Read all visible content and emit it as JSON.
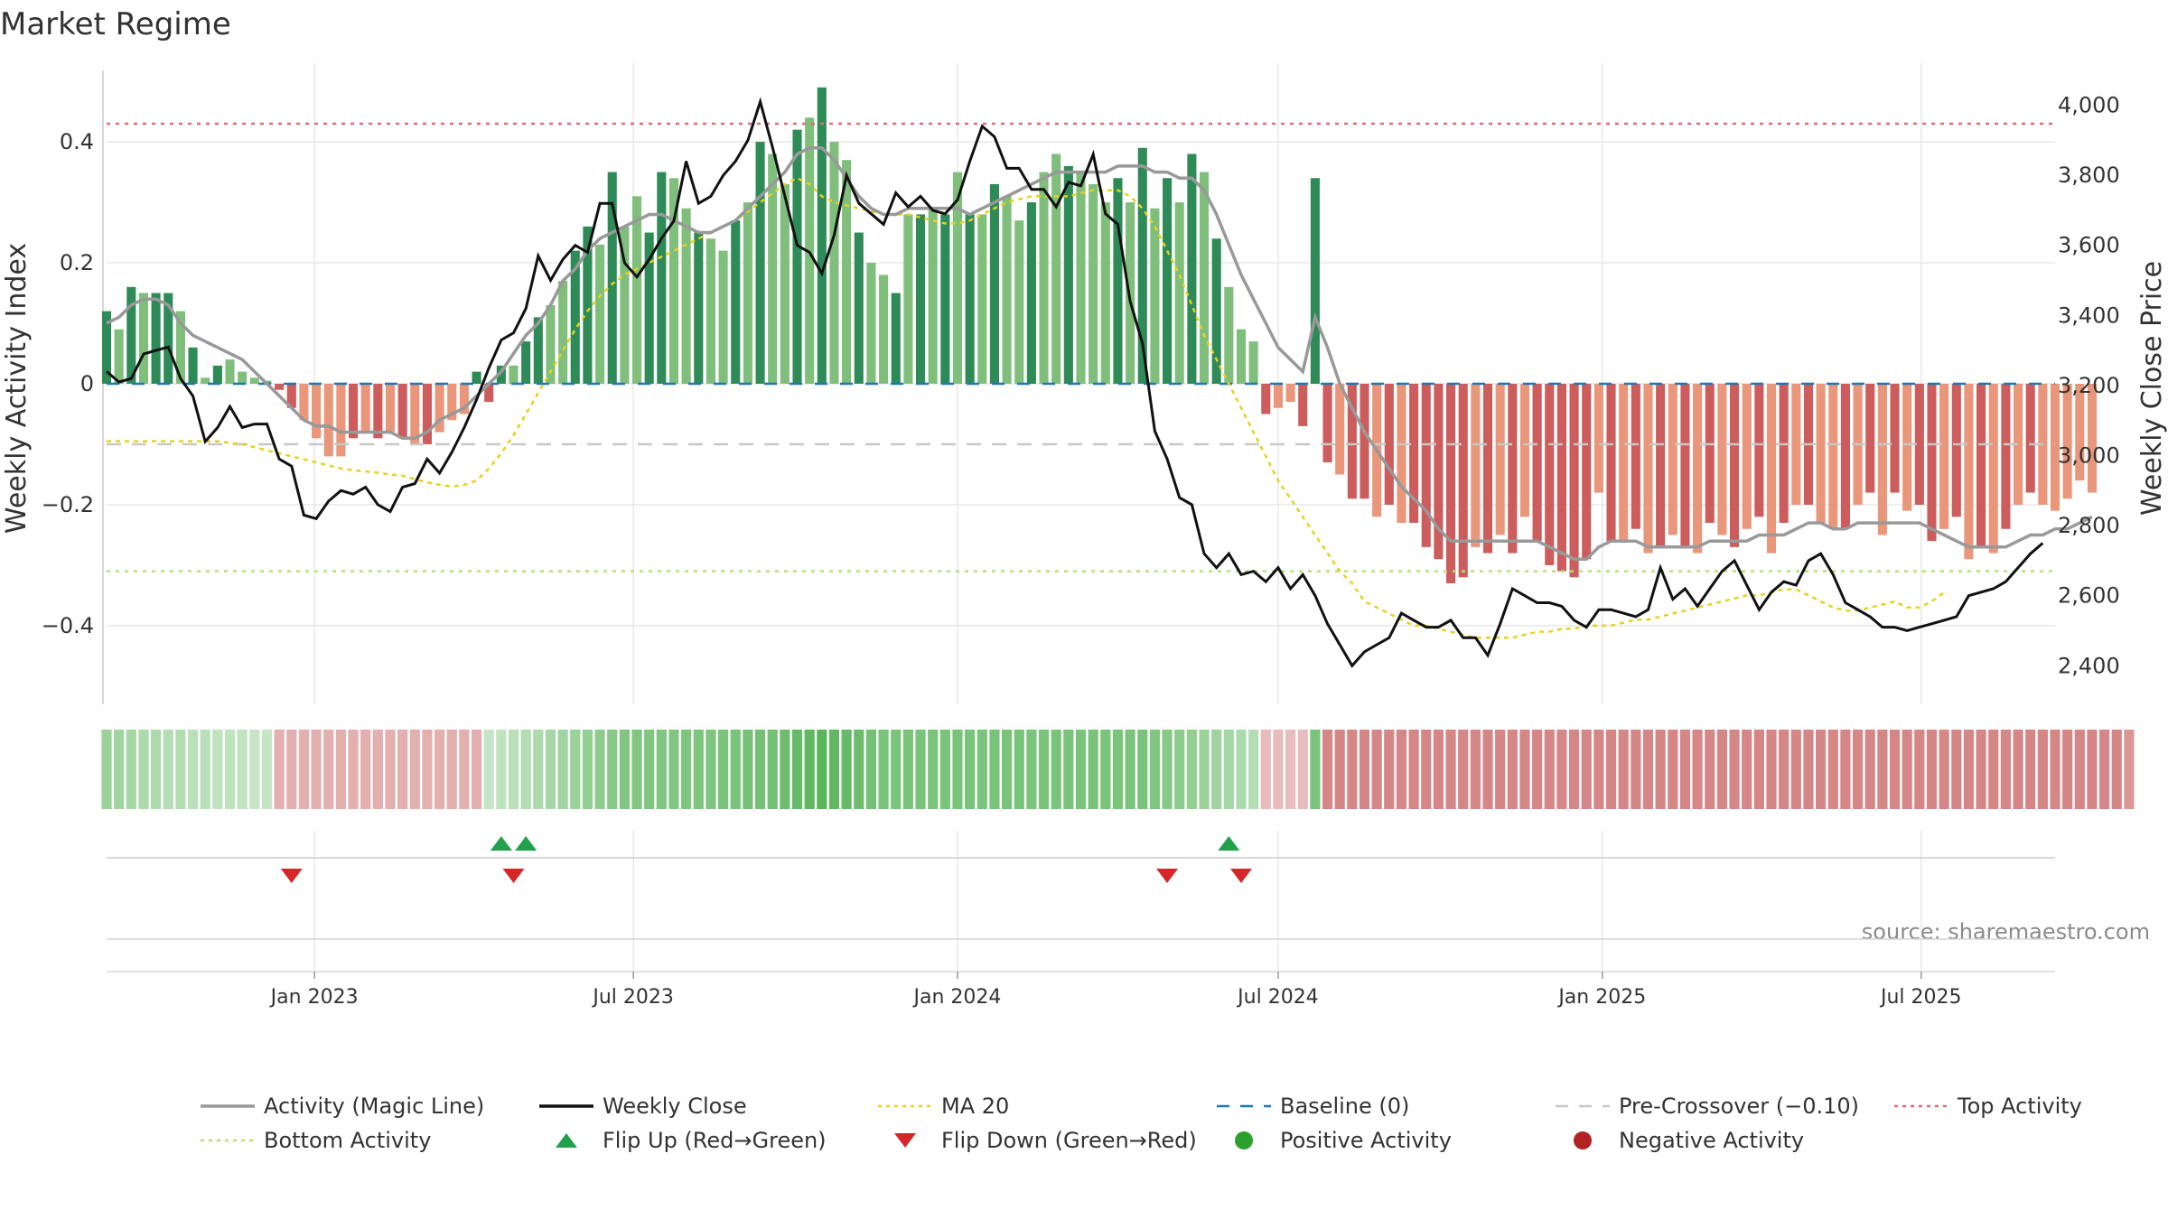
{
  "title": "Market Regime",
  "source": "source: sharemaestro.com",
  "colors": {
    "bar_green_dark": "#2e8b57",
    "bar_green_light": "#7fbf7b",
    "bar_red_dark": "#cd5c5c",
    "bar_red_light": "#e9967a",
    "magic_line": "#999999",
    "weekly_close": "#111111",
    "ma20": "#e6d21e",
    "baseline": "#1f77b4",
    "pre_crossover": "#c8c8c8",
    "top_activity": "#e06c75",
    "bottom_activity": "#b5e07a",
    "flip_up": "#22a04b",
    "flip_down": "#d62728",
    "positive": "#2ca02c",
    "negative": "#b22222"
  },
  "chart_data": {
    "type": "bar",
    "left_axis": {
      "label": "Weekly Activity Index",
      "ylim": [
        -0.53,
        0.53
      ],
      "ticks": [
        0.4,
        0.2,
        0,
        -0.2,
        -0.4
      ],
      "tick_labels": [
        "0.4",
        "0.2",
        "0",
        "−0.2",
        "−0.4"
      ]
    },
    "right_axis": {
      "label": "Weekly Close Price",
      "ylim": [
        2290,
        4120
      ],
      "ticks": [
        4000,
        3800,
        3600,
        3400,
        3200,
        3000,
        2800,
        2600,
        2400
      ],
      "tick_labels": [
        "4,000",
        "3,800",
        "3,600",
        "3,400",
        "3,200",
        "3,000",
        "2,800",
        "2,600",
        "2,400"
      ]
    },
    "x_axis": {
      "start": "2022-09-05",
      "end": "2025-09-15",
      "ticks": [
        "2023-01-01",
        "2023-07-01",
        "2024-01-01",
        "2024-07-01",
        "2025-01-01",
        "2025-07-01"
      ],
      "tick_labels": [
        "Jan 2023",
        "Jul 2023",
        "Jan 2024",
        "Jul 2024",
        "Jan 2025",
        "Jul 2025"
      ]
    },
    "weeks": {
      "start": "2022-09-05",
      "activity": [
        0.12,
        0.09,
        0.16,
        0.15,
        0.15,
        0.15,
        0.12,
        0.06,
        0.01,
        0.03,
        0.04,
        0.02,
        0.01,
        0.005,
        -0.01,
        -0.04,
        -0.06,
        -0.09,
        -0.12,
        -0.12,
        -0.09,
        -0.08,
        -0.09,
        -0.08,
        -0.09,
        -0.1,
        -0.1,
        -0.08,
        -0.06,
        -0.05,
        0.02,
        -0.03,
        0.03,
        0.03,
        0.07,
        0.11,
        0.13,
        0.17,
        0.22,
        0.26,
        0.23,
        0.35,
        0.26,
        0.31,
        0.25,
        0.35,
        0.34,
        0.29,
        0.25,
        0.24,
        0.22,
        0.27,
        0.3,
        0.4,
        0.38,
        0.33,
        0.42,
        0.44,
        0.49,
        0.4,
        0.37,
        0.25,
        0.2,
        0.18,
        0.15,
        0.28,
        0.28,
        0.29,
        0.28,
        0.35,
        0.28,
        0.28,
        0.33,
        0.31,
        0.27,
        0.3,
        0.35,
        0.38,
        0.36,
        0.35,
        0.33,
        0.3,
        0.34,
        0.3,
        0.39,
        0.29,
        0.34,
        0.3,
        0.38,
        0.35,
        0.24,
        0.16,
        0.09,
        0.07,
        -0.05,
        -0.04,
        -0.03,
        -0.07,
        0.34,
        -0.13,
        -0.15,
        -0.19,
        -0.19,
        -0.22,
        -0.2,
        -0.23,
        -0.23,
        -0.27,
        -0.29,
        -0.33,
        -0.32,
        -0.27,
        -0.28,
        -0.25,
        -0.28,
        -0.22,
        -0.26,
        -0.3,
        -0.31,
        -0.32,
        -0.29,
        -0.18,
        -0.26,
        -0.26,
        -0.24,
        -0.28,
        -0.27,
        -0.25,
        -0.27,
        -0.28,
        -0.23,
        -0.25,
        -0.27,
        -0.24,
        -0.22,
        -0.28,
        -0.23,
        -0.2,
        -0.2,
        -0.23,
        -0.24,
        -0.24,
        -0.2,
        -0.18,
        -0.25,
        -0.18,
        -0.21,
        -0.2,
        -0.26,
        -0.24,
        -0.22,
        -0.29,
        -0.27,
        -0.28,
        -0.24,
        -0.2,
        -0.18,
        -0.2,
        -0.21,
        -0.19,
        -0.16,
        -0.18
      ],
      "activity_dark": [
        1,
        0,
        1,
        0,
        1,
        1,
        0,
        1,
        0,
        1,
        0,
        0,
        0,
        0,
        1,
        1,
        0,
        0,
        0,
        0,
        1,
        0,
        1,
        0,
        1,
        0,
        1,
        0,
        0,
        0,
        1,
        1,
        1,
        0,
        1,
        1,
        0,
        0,
        1,
        1,
        0,
        1,
        0,
        0,
        1,
        1,
        0,
        0,
        1,
        0,
        0,
        1,
        0,
        1,
        0,
        0,
        1,
        0,
        1,
        0,
        0,
        1,
        0,
        0,
        1,
        0,
        1,
        0,
        1,
        0,
        1,
        0,
        1,
        0,
        0,
        1,
        0,
        0,
        1,
        0,
        0,
        0,
        1,
        0,
        1,
        0,
        1,
        0,
        1,
        0,
        1,
        0,
        0,
        0,
        1,
        0,
        0,
        1,
        1,
        1,
        0,
        1,
        1,
        0,
        1,
        0,
        1,
        1,
        1,
        1,
        1,
        0,
        1,
        0,
        1,
        0,
        1,
        1,
        1,
        1,
        1,
        0,
        1,
        0,
        1,
        0,
        1,
        0,
        1,
        0,
        1,
        0,
        1,
        0,
        1,
        0,
        1,
        0,
        1,
        0,
        0,
        1,
        0,
        1,
        0,
        1,
        0,
        1,
        1,
        0,
        1,
        0,
        1,
        0,
        1,
        0,
        1,
        0,
        0,
        0,
        0,
        0,
        1,
        0,
        1,
        1,
        0
      ],
      "magic": [
        0.1,
        0.11,
        0.13,
        0.14,
        0.14,
        0.13,
        0.1,
        0.08,
        0.07,
        0.06,
        0.05,
        0.04,
        0.02,
        0,
        -0.02,
        -0.04,
        -0.06,
        -0.07,
        -0.07,
        -0.08,
        -0.08,
        -0.08,
        -0.08,
        -0.08,
        -0.09,
        -0.09,
        -0.08,
        -0.06,
        -0.05,
        -0.04,
        -0.02,
        0,
        0.02,
        0.05,
        0.08,
        0.1,
        0.13,
        0.17,
        0.19,
        0.22,
        0.24,
        0.25,
        0.26,
        0.27,
        0.28,
        0.28,
        0.27,
        0.26,
        0.25,
        0.25,
        0.26,
        0.27,
        0.29,
        0.31,
        0.33,
        0.35,
        0.38,
        0.39,
        0.39,
        0.37,
        0.34,
        0.31,
        0.29,
        0.28,
        0.28,
        0.29,
        0.29,
        0.29,
        0.29,
        0.29,
        0.28,
        0.29,
        0.3,
        0.31,
        0.32,
        0.33,
        0.34,
        0.35,
        0.35,
        0.35,
        0.35,
        0.35,
        0.36,
        0.36,
        0.36,
        0.35,
        0.35,
        0.34,
        0.34,
        0.32,
        0.28,
        0.23,
        0.18,
        0.14,
        0.1,
        0.06,
        0.04,
        0.02,
        0.11,
        0.06,
        0,
        -0.04,
        -0.08,
        -0.11,
        -0.14,
        -0.17,
        -0.19,
        -0.21,
        -0.24,
        -0.26,
        -0.26,
        -0.26,
        -0.26,
        -0.26,
        -0.26,
        -0.26,
        -0.26,
        -0.27,
        -0.28,
        -0.29,
        -0.29,
        -0.27,
        -0.26,
        -0.26,
        -0.26,
        -0.27,
        -0.27,
        -0.27,
        -0.27,
        -0.27,
        -0.26,
        -0.26,
        -0.26,
        -0.26,
        -0.25,
        -0.25,
        -0.25,
        -0.24,
        -0.23,
        -0.23,
        -0.24,
        -0.24,
        -0.23,
        -0.23,
        -0.23,
        -0.23,
        -0.23,
        -0.23,
        -0.24,
        -0.25,
        -0.26,
        -0.27,
        -0.27,
        -0.27,
        -0.27,
        -0.26,
        -0.25,
        -0.25,
        -0.24,
        -0.24,
        -0.23,
        -0.22
      ],
      "close": [
        3240,
        3210,
        3220,
        3290,
        3300,
        3310,
        3220,
        3170,
        3040,
        3080,
        3140,
        3080,
        3090,
        3090,
        2990,
        2970,
        2830,
        2820,
        2870,
        2900,
        2890,
        2910,
        2860,
        2840,
        2910,
        2920,
        2990,
        2950,
        3010,
        3080,
        3160,
        3250,
        3330,
        3350,
        3420,
        3570,
        3500,
        3560,
        3600,
        3580,
        3720,
        3720,
        3550,
        3510,
        3560,
        3620,
        3670,
        3840,
        3720,
        3740,
        3800,
        3840,
        3900,
        4010,
        3880,
        3740,
        3600,
        3580,
        3520,
        3630,
        3800,
        3720,
        3690,
        3660,
        3750,
        3710,
        3740,
        3700,
        3690,
        3730,
        3840,
        3940,
        3910,
        3820,
        3820,
        3760,
        3760,
        3710,
        3780,
        3770,
        3860,
        3690,
        3660,
        3440,
        3320,
        3070,
        2990,
        2880,
        2860,
        2720,
        2680,
        2720,
        2660,
        2670,
        2640,
        2680,
        2620,
        2660,
        2600,
        2520,
        2460,
        2400,
        2440,
        2460,
        2480,
        2550,
        2530,
        2510,
        2510,
        2530,
        2480,
        2480,
        2430,
        2520,
        2620,
        2600,
        2580,
        2580,
        2570,
        2530,
        2510,
        2560,
        2560,
        2550,
        2540,
        2560,
        2680,
        2590,
        2620,
        2570,
        2620,
        2670,
        2700,
        2630,
        2560,
        2610,
        2640,
        2630,
        2700,
        2720,
        2660,
        2580,
        2560,
        2540,
        2510,
        2510,
        2500,
        2510,
        2520,
        2530,
        2540,
        2600,
        2610,
        2620,
        2640,
        2680,
        2720,
        2750
      ],
      "ma20": [
        -0.095,
        -0.095,
        -0.095,
        -0.095,
        -0.095,
        -0.095,
        -0.095,
        -0.095,
        -0.095,
        -0.095,
        -0.098,
        -0.1,
        -0.105,
        -0.11,
        -0.115,
        -0.12,
        -0.125,
        -0.13,
        -0.135,
        -0.14,
        -0.143,
        -0.145,
        -0.147,
        -0.15,
        -0.152,
        -0.158,
        -0.163,
        -0.167,
        -0.17,
        -0.167,
        -0.16,
        -0.14,
        -0.115,
        -0.085,
        -0.05,
        -0.015,
        0.02,
        0.055,
        0.09,
        0.12,
        0.145,
        0.165,
        0.18,
        0.19,
        0.2,
        0.21,
        0.22,
        0.23,
        0.24,
        0.25,
        0.26,
        0.27,
        0.285,
        0.3,
        0.315,
        0.33,
        0.34,
        0.33,
        0.31,
        0.3,
        0.295,
        0.29,
        0.285,
        0.28,
        0.28,
        0.28,
        0.275,
        0.27,
        0.265,
        0.265,
        0.27,
        0.28,
        0.29,
        0.3,
        0.305,
        0.31,
        0.31,
        0.31,
        0.31,
        0.315,
        0.32,
        0.32,
        0.32,
        0.31,
        0.29,
        0.26,
        0.22,
        0.18,
        0.13,
        0.08,
        0.04,
        0,
        -0.04,
        -0.08,
        -0.12,
        -0.16,
        -0.19,
        -0.22,
        -0.25,
        -0.28,
        -0.31,
        -0.33,
        -0.36,
        -0.37,
        -0.38,
        -0.39,
        -0.4,
        -0.4,
        -0.405,
        -0.41,
        -0.415,
        -0.42,
        -0.42,
        -0.42,
        -0.42,
        -0.415,
        -0.41,
        -0.41,
        -0.405,
        -0.405,
        -0.4,
        -0.4,
        -0.4,
        -0.395,
        -0.39,
        -0.39,
        -0.385,
        -0.38,
        -0.375,
        -0.37,
        -0.365,
        -0.36,
        -0.355,
        -0.35,
        -0.35,
        -0.345,
        -0.34,
        -0.34,
        -0.35,
        -0.36,
        -0.37,
        -0.375,
        -0.375,
        -0.37,
        -0.365,
        -0.36,
        -0.37,
        -0.37,
        -0.36,
        -0.345
      ],
      "regime_strength": [
        0.5,
        0.45,
        0.4,
        0.35,
        0.35,
        0.3,
        0.3,
        0.25,
        0.25,
        0.2,
        0.2,
        0.2,
        0.15,
        0.15,
        0.3,
        0.3,
        0.3,
        0.3,
        0.3,
        0.3,
        0.3,
        0.3,
        0.3,
        0.3,
        0.3,
        0.3,
        0.3,
        0.3,
        0.3,
        0.3,
        0.3,
        0.15,
        0.2,
        0.25,
        0.3,
        0.35,
        0.4,
        0.45,
        0.5,
        0.55,
        0.6,
        0.65,
        0.7,
        0.7,
        0.7,
        0.7,
        0.7,
        0.72,
        0.72,
        0.72,
        0.75,
        0.75,
        0.78,
        0.8,
        0.8,
        0.85,
        0.9,
        0.95,
        1,
        0.95,
        0.9,
        0.85,
        0.8,
        0.75,
        0.75,
        0.75,
        0.75,
        0.75,
        0.75,
        0.75,
        0.75,
        0.75,
        0.75,
        0.75,
        0.75,
        0.75,
        0.75,
        0.75,
        0.75,
        0.75,
        0.75,
        0.75,
        0.75,
        0.75,
        0.75,
        0.7,
        0.65,
        0.6,
        0.55,
        0.5,
        0.45,
        0.4,
        0.35,
        0.3,
        0.2,
        0.2,
        0.2,
        0.2,
        0.75,
        0.6,
        0.6,
        0.6,
        0.6,
        0.6,
        0.6,
        0.6,
        0.6,
        0.6,
        0.6,
        0.6,
        0.6,
        0.6,
        0.6,
        0.6,
        0.6,
        0.6,
        0.6,
        0.6,
        0.6,
        0.6,
        0.6,
        0.6,
        0.6,
        0.6,
        0.6,
        0.6,
        0.6,
        0.6,
        0.6,
        0.6,
        0.6,
        0.6,
        0.6,
        0.6,
        0.6,
        0.6,
        0.6,
        0.6,
        0.6,
        0.6,
        0.6,
        0.6,
        0.6,
        0.6,
        0.6,
        0.6,
        0.6,
        0.6,
        0.6,
        0.6,
        0.6,
        0.6,
        0.6,
        0.6,
        0.6,
        0.6,
        0.6,
        0.6,
        0.6,
        0.6,
        0.6,
        0.6,
        0.6,
        0.6,
        0.5
      ],
      "regime_positive": [
        1,
        1,
        1,
        1,
        1,
        1,
        1,
        1,
        1,
        1,
        1,
        1,
        1,
        1,
        0,
        0,
        0,
        0,
        0,
        0,
        0,
        0,
        0,
        0,
        0,
        0,
        0,
        0,
        0,
        0,
        0,
        1,
        1,
        1,
        1,
        1,
        1,
        1,
        1,
        1,
        1,
        1,
        1,
        1,
        1,
        1,
        1,
        1,
        1,
        1,
        1,
        1,
        1,
        1,
        1,
        1,
        1,
        1,
        1,
        1,
        1,
        1,
        1,
        1,
        1,
        1,
        1,
        1,
        1,
        1,
        1,
        1,
        1,
        1,
        1,
        1,
        1,
        1,
        1,
        1,
        1,
        1,
        1,
        1,
        1,
        1,
        1,
        1,
        1,
        1,
        1,
        1,
        1,
        1,
        0,
        0,
        0,
        0,
        1,
        0,
        0,
        0,
        0,
        0,
        0,
        0,
        0,
        0,
        0,
        0,
        0,
        0,
        0,
        0,
        0,
        0,
        0,
        0,
        0,
        0,
        0,
        0,
        0,
        0,
        0,
        0,
        0,
        0,
        0,
        0,
        0,
        0,
        0,
        0,
        0,
        0,
        0,
        0,
        0,
        0,
        0,
        0,
        0,
        0,
        0,
        0,
        0,
        0,
        0,
        0,
        0,
        0,
        0,
        0,
        0,
        0,
        0,
        0,
        0,
        0,
        0
      ]
    },
    "reference_lines": {
      "top_activity": 0.43,
      "bottom_activity": -0.31,
      "baseline": 0,
      "pre_crossover": -0.1
    },
    "flip_up": [
      "2023-04-17",
      "2023-05-01",
      "2024-06-03"
    ],
    "flip_down": [
      "2022-12-19",
      "2023-04-24",
      "2024-04-29",
      "2024-06-10"
    ],
    "legend": [
      {
        "label": "Activity (Magic Line)",
        "kind": "line",
        "color": "#999999"
      },
      {
        "label": "Weekly Close",
        "kind": "line",
        "color": "#111111"
      },
      {
        "label": "MA 20",
        "kind": "dotted",
        "color": "#e6d21e"
      },
      {
        "label": "Baseline (0)",
        "kind": "dashed",
        "color": "#1f77b4"
      },
      {
        "label": "Pre-Crossover (−0.10)",
        "kind": "dashed",
        "color": "#c8c8c8"
      },
      {
        "label": "Top Activity",
        "kind": "dotted",
        "color": "#e06c75"
      },
      {
        "label": "Bottom Activity",
        "kind": "dotted",
        "color": "#b5e07a"
      },
      {
        "label": "Flip Up (Red→Green)",
        "kind": "triangle-up",
        "color": "#22a04b"
      },
      {
        "label": "Flip Down (Green→Red)",
        "kind": "triangle-down",
        "color": "#d62728"
      },
      {
        "label": "Positive Activity",
        "kind": "dot",
        "color": "#2ca02c"
      },
      {
        "label": "Negative Activity",
        "kind": "dot",
        "color": "#b22222"
      }
    ],
    "legend_position": "bottom"
  }
}
